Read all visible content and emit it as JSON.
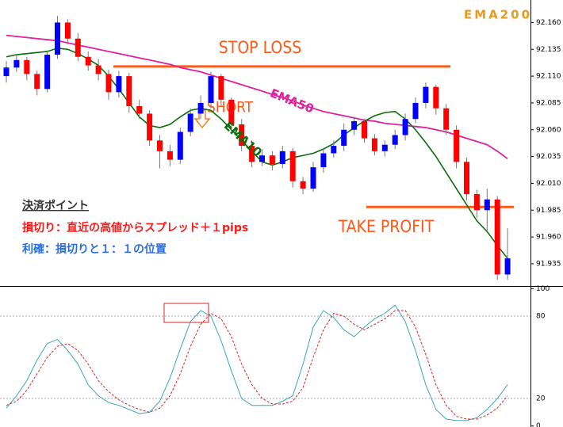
{
  "chart_data": [
    {
      "type": "candlestick",
      "open": [
        92.11,
        92.118,
        92.125,
        92.112,
        92.098,
        92.13,
        92.16,
        92.145,
        92.128,
        92.12,
        92.112,
        92.095,
        92.11,
        92.082,
        92.075,
        92.05,
        92.04,
        92.032,
        92.058,
        92.075,
        92.085,
        92.11,
        92.088,
        92.065,
        92.045,
        92.03,
        92.036,
        92.028,
        92.04,
        92.012,
        92.005,
        92.025,
        92.038,
        92.045,
        92.06,
        92.068,
        92.052,
        92.04,
        92.046,
        92.055,
        92.07,
        92.085,
        92.1,
        92.08,
        92.06,
        92.03,
        92.0,
        91.985,
        91.995,
        91.925
      ],
      "high": [
        92.124,
        92.13,
        92.128,
        92.115,
        92.134,
        92.166,
        92.163,
        92.15,
        92.133,
        92.126,
        92.116,
        92.115,
        92.113,
        92.088,
        92.078,
        92.055,
        92.046,
        92.062,
        92.08,
        92.092,
        92.114,
        92.112,
        92.09,
        92.07,
        92.05,
        92.042,
        92.04,
        92.045,
        92.043,
        92.016,
        92.03,
        92.043,
        92.05,
        92.066,
        92.072,
        92.07,
        92.056,
        92.05,
        92.06,
        92.075,
        92.09,
        92.104,
        92.102,
        92.084,
        92.064,
        92.034,
        92.004,
        92.005,
        91.998,
        91.968
      ],
      "low": [
        92.104,
        92.114,
        92.106,
        92.092,
        92.095,
        92.126,
        92.14,
        92.124,
        92.115,
        92.106,
        92.088,
        92.09,
        92.076,
        92.07,
        92.045,
        92.024,
        92.026,
        92.028,
        92.054,
        92.07,
        92.08,
        92.082,
        92.06,
        92.04,
        92.025,
        92.026,
        92.022,
        92.024,
        92.006,
        92.0,
        92.002,
        92.02,
        92.034,
        92.04,
        92.055,
        92.048,
        92.036,
        92.035,
        92.042,
        92.05,
        92.066,
        92.08,
        92.074,
        92.055,
        92.024,
        91.994,
        91.978,
        91.965,
        91.92,
        91.92
      ],
      "close": [
        92.118,
        92.125,
        92.112,
        92.098,
        92.13,
        92.16,
        92.145,
        92.128,
        92.12,
        92.112,
        92.095,
        92.11,
        92.082,
        92.075,
        92.05,
        92.04,
        92.032,
        92.058,
        92.075,
        92.085,
        92.11,
        92.088,
        92.065,
        92.045,
        92.03,
        92.036,
        92.028,
        92.04,
        92.012,
        92.005,
        92.025,
        92.038,
        92.045,
        92.06,
        92.068,
        92.052,
        92.04,
        92.046,
        92.055,
        92.07,
        92.085,
        92.1,
        92.08,
        92.06,
        92.03,
        92.0,
        91.985,
        91.995,
        91.925,
        91.94
      ],
      "up_color": "#0000ff",
      "down_color": "#ff0000",
      "lines": [
        {
          "name": "EMA10",
          "color": "#0a6e0a",
          "values": [
            92.128,
            92.13,
            92.131,
            92.132,
            92.133,
            92.136,
            92.135,
            92.131,
            92.126,
            92.12,
            92.11,
            92.098,
            92.085,
            92.072,
            92.064,
            92.062,
            92.065,
            92.072,
            92.078,
            92.08,
            92.078,
            92.07,
            92.06,
            92.05,
            92.04,
            92.03,
            92.027,
            92.03,
            92.034,
            92.036,
            92.038,
            92.042,
            92.047,
            92.055,
            92.062,
            92.068,
            92.073,
            92.076,
            92.077,
            92.07,
            92.06,
            92.048,
            92.035,
            92.02,
            92.005,
            91.99,
            91.975,
            91.965,
            91.952,
            91.94
          ]
        },
        {
          "name": "EMA50",
          "color": "#e0209c",
          "values": [
            92.148,
            92.147,
            92.146,
            92.145,
            92.144,
            92.143,
            92.141,
            92.139,
            92.137,
            92.135,
            92.133,
            92.131,
            92.129,
            92.127,
            92.125,
            92.123,
            92.121,
            92.118,
            92.116,
            92.114,
            92.111,
            92.108,
            92.105,
            92.102,
            92.099,
            92.096,
            92.093,
            92.09,
            92.087,
            92.083,
            92.08,
            92.077,
            92.075,
            92.073,
            92.071,
            92.069,
            92.068,
            92.066,
            92.065,
            92.064,
            92.063,
            92.062,
            92.06,
            92.058,
            92.055,
            92.052,
            92.049,
            92.046,
            92.04,
            92.033
          ]
        }
      ],
      "levels": [
        {
          "label": "STOP LOSS",
          "value": 92.119,
          "color": "#ff5a1a"
        },
        {
          "label": "TAKE PROFIT",
          "value": 91.988,
          "color": "#ff5a1a"
        }
      ],
      "annotations": [
        "EMA200",
        "SHORT"
      ],
      "ylim": [
        91.915,
        92.181
      ],
      "yticks": [
        {
          "value": 92.16,
          "label": "92.160"
        },
        92.135,
        {
          "value": 92.11,
          "label": "92.110"
        },
        92.085,
        {
          "value": 92.06,
          "label": "92.060"
        },
        92.035,
        {
          "value": 92.01,
          "label": "92.010"
        },
        91.985,
        {
          "value": 91.96,
          "label": "91.960"
        },
        91.935
      ]
    },
    {
      "type": "line",
      "series": [
        {
          "color": "#3fa7b5",
          "values": [
            13,
            22,
            33,
            48,
            60,
            63,
            55,
            45,
            30,
            22,
            17,
            15,
            12,
            9,
            10,
            18,
            35,
            56,
            76,
            84,
            80,
            62,
            40,
            20,
            15,
            15,
            15,
            18,
            22,
            45,
            72,
            84,
            79,
            70,
            65,
            72,
            78,
            82,
            88,
            76,
            55,
            30,
            12,
            5,
            4,
            4,
            6,
            12,
            20,
            30
          ]
        },
        {
          "color": "#e02020",
          "values": [
            15,
            18,
            26,
            38,
            50,
            58,
            60,
            55,
            45,
            33,
            25,
            19,
            15,
            12,
            10,
            13,
            22,
            38,
            58,
            74,
            82,
            78,
            65,
            45,
            30,
            20,
            16,
            16,
            18,
            28,
            50,
            70,
            82,
            80,
            74,
            70,
            74,
            78,
            84,
            84,
            72,
            52,
            30,
            15,
            7,
            5,
            5,
            8,
            13,
            22
          ]
        }
      ],
      "ylim": [
        0,
        100
      ],
      "yticks": [
        0,
        20,
        80,
        100
      ]
    }
  ],
  "notes": {
    "heading": "決済ポイント",
    "stop_loss": "損切り：直近の高値からスプレッド＋１pips",
    "take_profit": "利確：損切りと１：１の位置"
  }
}
